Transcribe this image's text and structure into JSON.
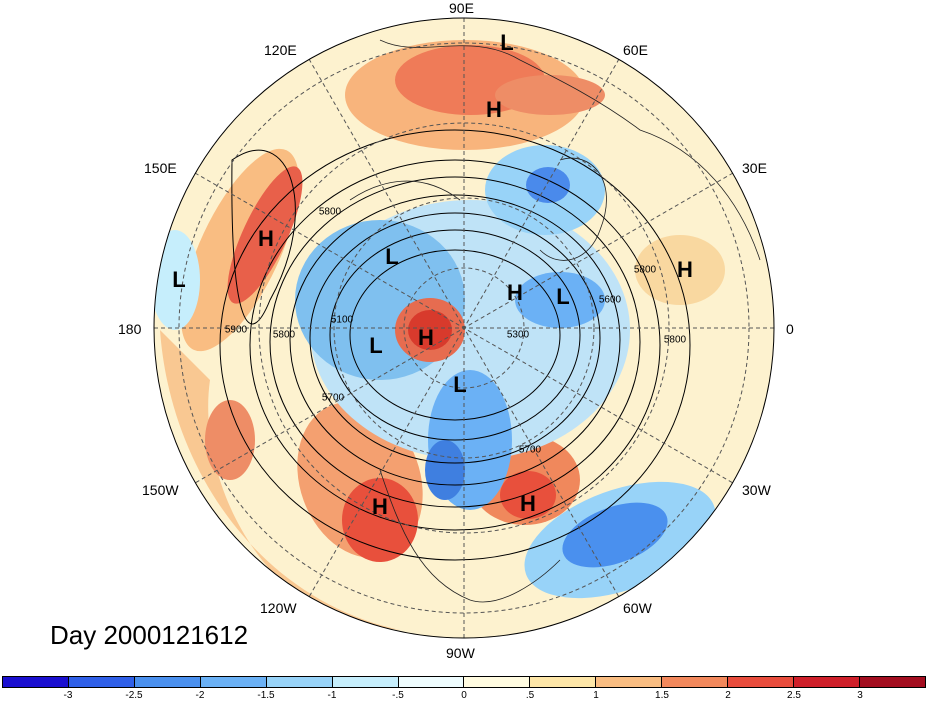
{
  "title": "Day 2000121612",
  "longitude_labels": [
    "90E",
    "60E",
    "30E",
    "0",
    "30W",
    "60W",
    "90W",
    "120W",
    "150W",
    "180",
    "150E",
    "120E"
  ],
  "pressure_centers": [
    {
      "label": "L",
      "lon": "near 90E"
    },
    {
      "label": "H",
      "lon": "Siberia"
    },
    {
      "label": "H",
      "lon": "Pacific W"
    },
    {
      "label": "L",
      "lon": "Pacific W far"
    },
    {
      "label": "L",
      "lon": "Alaska N"
    },
    {
      "label": "H",
      "lon": "Arctic center"
    },
    {
      "label": "L",
      "lon": "Alaska"
    },
    {
      "label": "L",
      "lon": "Canada"
    },
    {
      "label": "H",
      "lon": "Greenland"
    },
    {
      "label": "L",
      "lon": "Greenland E"
    },
    {
      "label": "H",
      "lon": "Europe"
    },
    {
      "label": "H",
      "lon": "Pacific E"
    },
    {
      "label": "H",
      "lon": "Atlantic W"
    }
  ],
  "contour_labels": [
    "5800",
    "5900",
    "5800",
    "5100",
    "5700",
    "5300",
    "5700",
    "5800",
    "5600",
    "5800"
  ],
  "colorbar": {
    "ticks": [
      "-3",
      "-2.5",
      "-2",
      "-1.5",
      "-1",
      "-.5",
      "0",
      ".5",
      "1",
      "1.5",
      "2",
      "2.5",
      "3"
    ],
    "colors": [
      "#1a0fd0",
      "#2f5fe8",
      "#4a90ee",
      "#6bb1f5",
      "#98d3f8",
      "#c6eefc",
      "#eefcfe",
      "#fffbe0",
      "#fde6a8",
      "#f9bd82",
      "#f2885c",
      "#e84c3c",
      "#cf1f2a",
      "#a30d1f"
    ]
  }
}
